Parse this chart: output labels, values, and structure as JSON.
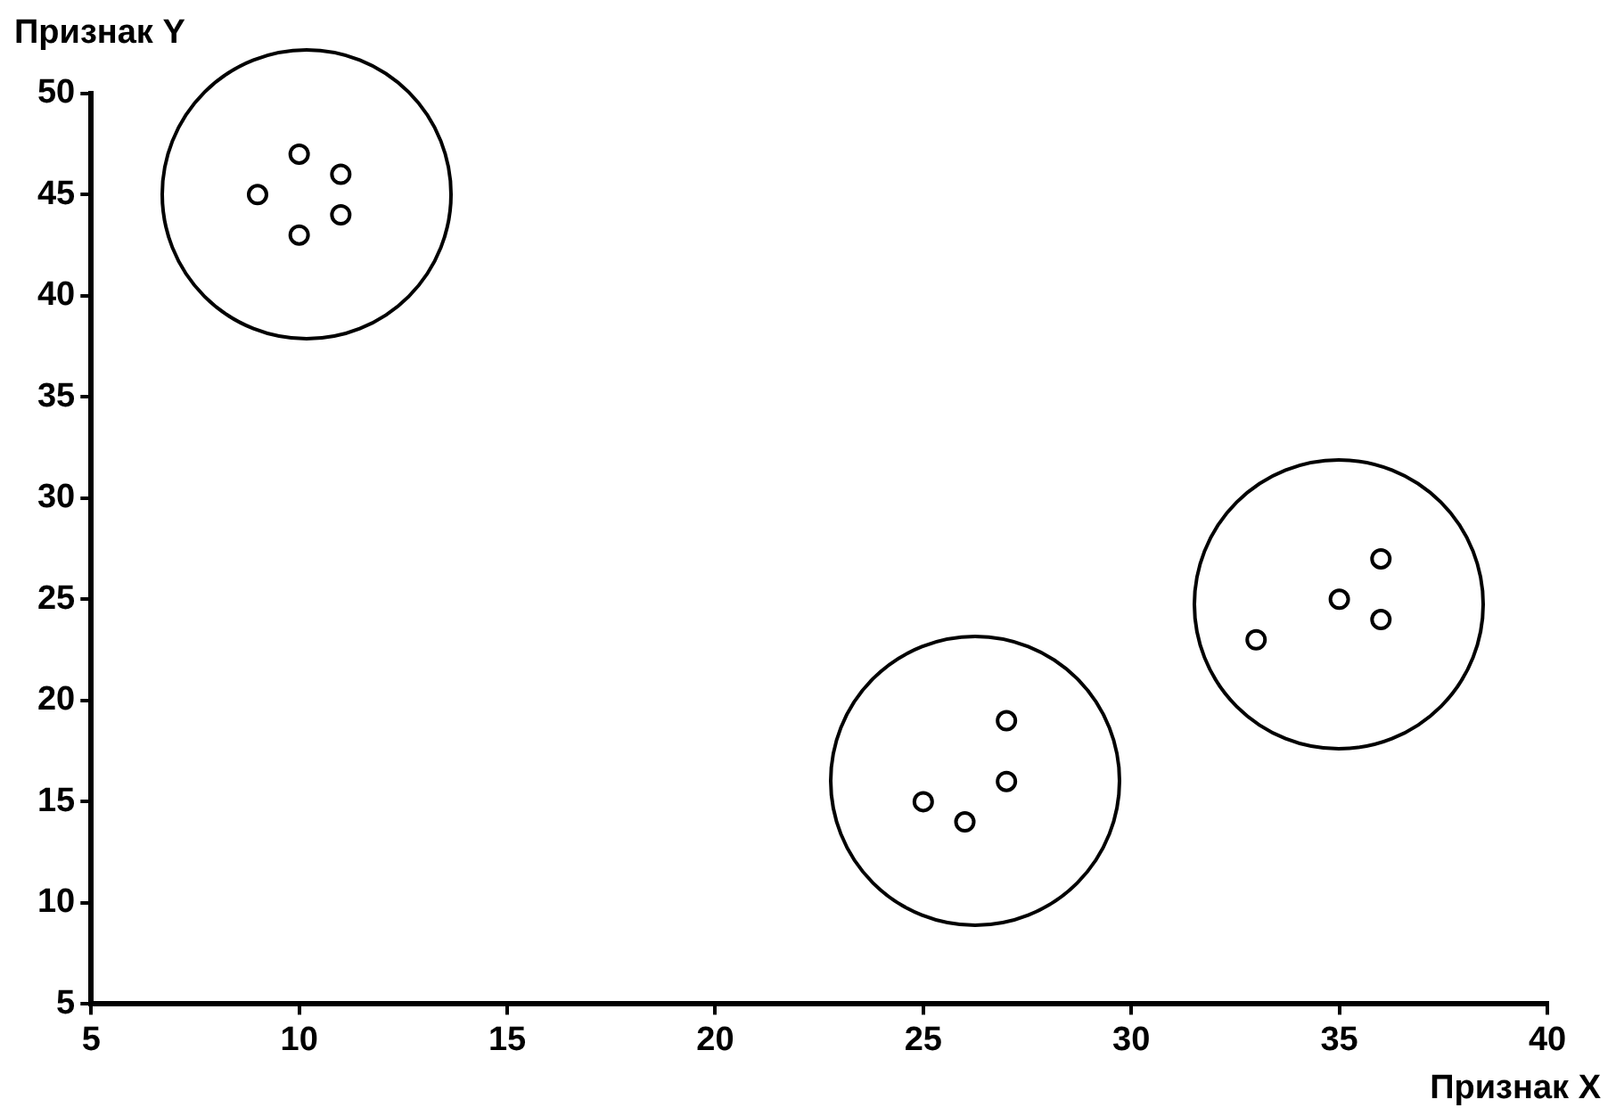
{
  "chart_data": {
    "type": "scatter",
    "xlabel": "Признак X",
    "ylabel": "Признак Y",
    "series": [
      {
        "color": "#000000",
        "x": [
          9,
          10,
          11,
          11,
          10
        ],
        "values": [
          45,
          47,
          46,
          44,
          43
        ]
      },
      {
        "color": "#000000",
        "x": [
          25,
          26,
          27,
          27
        ],
        "values": [
          15,
          14,
          16,
          19
        ]
      },
      {
        "color": "#000000",
        "x": [
          33,
          35,
          36,
          36
        ],
        "values": [
          23,
          25,
          27,
          24
        ]
      }
    ],
    "xlim": [
      5,
      40
    ],
    "xticks": [
      5,
      10,
      15,
      20,
      25,
      30,
      35,
      40
    ],
    "ylim": [
      5,
      50
    ],
    "yticks": [
      5,
      10,
      15,
      20,
      25,
      30,
      35,
      40,
      45,
      50
    ],
    "grid": false,
    "legend": false,
    "marker": "circle"
  }
}
